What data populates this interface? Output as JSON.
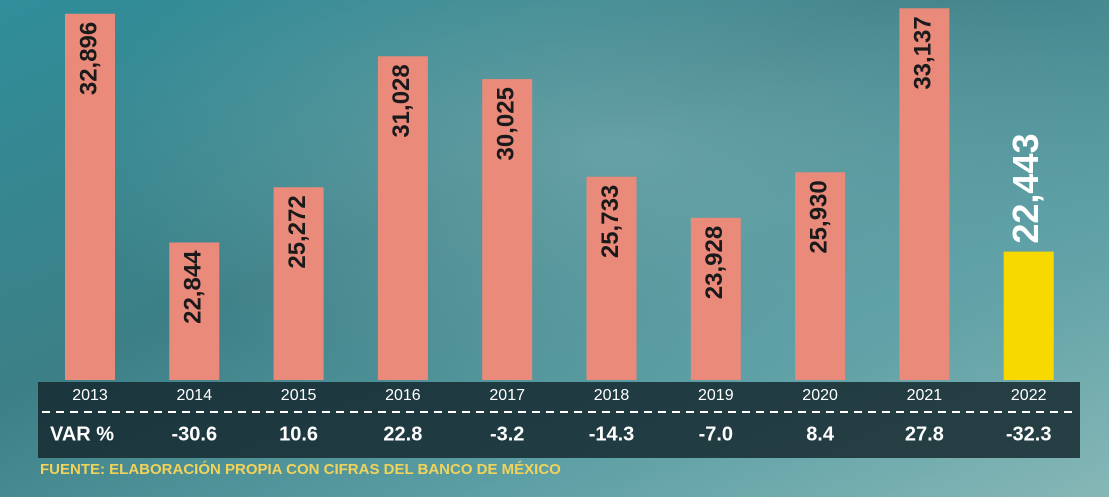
{
  "chart_data": {
    "type": "bar",
    "categories": [
      "2013",
      "2014",
      "2015",
      "2016",
      "2017",
      "2018",
      "2019",
      "2020",
      "2021",
      "2022"
    ],
    "values": [
      32896,
      22844,
      25272,
      31028,
      30025,
      25733,
      23928,
      25930,
      33137,
      22443
    ],
    "value_labels": [
      "32,896",
      "22,844",
      "25,272",
      "31,028",
      "30,025",
      "25,733",
      "23,928",
      "25,930",
      "33,137",
      "22,443"
    ],
    "colors": [
      "#e98a7b",
      "#e98a7b",
      "#e98a7b",
      "#e98a7b",
      "#e98a7b",
      "#e98a7b",
      "#e98a7b",
      "#e98a7b",
      "#e98a7b",
      "#f7d900"
    ],
    "ylim": [
      16800,
      33500
    ],
    "var_label": "VAR %",
    "var_values": [
      null,
      -30.6,
      10.6,
      22.8,
      -3.2,
      -14.3,
      -7.0,
      8.4,
      27.8,
      -32.3
    ],
    "var_labels": [
      null,
      "-30.6",
      "10.6",
      "22.8",
      "-3.2",
      "-14.3",
      "-7.0",
      "8.4",
      "27.8",
      "-32.3"
    ],
    "source": "FUENTE: ELABORACIÓN PROPIA CON CIFRAS DEL BANCO DE MÉXICO"
  }
}
